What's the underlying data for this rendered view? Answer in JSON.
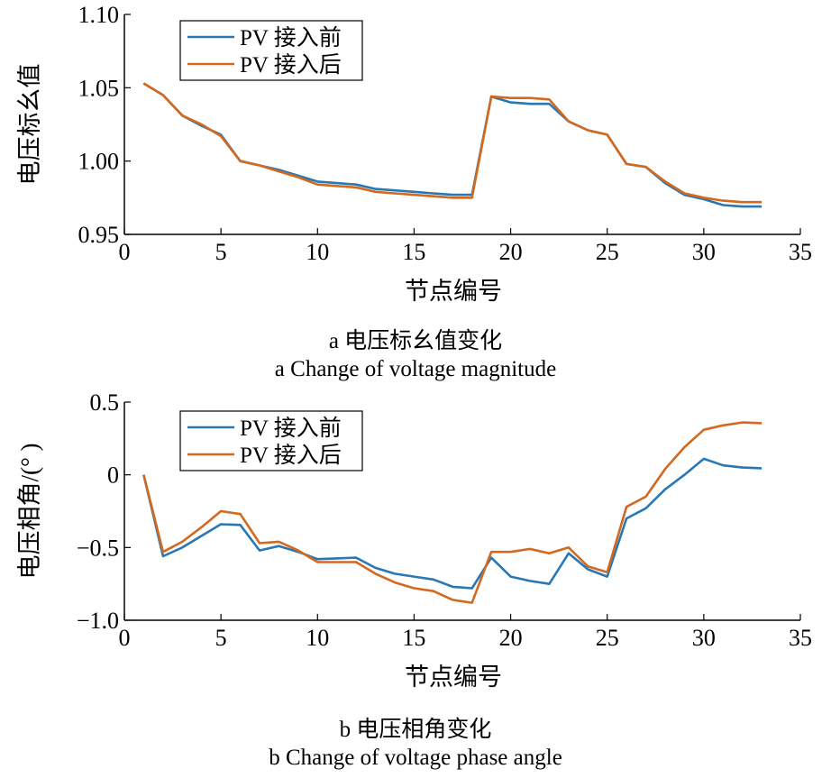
{
  "chart_data": [
    {
      "type": "line",
      "caption_cn": "a  电压标幺值变化",
      "caption_en": "a  Change of voltage magnitude",
      "xlabel": "节点编号",
      "ylabel": "电压标幺值",
      "xlim": [
        0,
        35
      ],
      "ylim": [
        0.95,
        1.1
      ],
      "xticks": [
        0,
        5,
        10,
        15,
        20,
        25,
        30,
        35
      ],
      "xtick_labels": [
        "0",
        "5",
        "10",
        "15",
        "20",
        "25",
        "30",
        "35"
      ],
      "yticks": [
        0.95,
        1.0,
        1.05,
        1.1
      ],
      "ytick_labels": [
        "0.95",
        "1.00",
        "1.05",
        "1.10"
      ],
      "grid": false,
      "legend_position": "top-left",
      "x": [
        1,
        2,
        3,
        4,
        5,
        6,
        7,
        8,
        9,
        10,
        11,
        12,
        13,
        14,
        15,
        16,
        17,
        18,
        19,
        20,
        21,
        22,
        23,
        24,
        25,
        26,
        27,
        28,
        29,
        30,
        31,
        32,
        33
      ],
      "series": [
        {
          "name": "PV 接入前",
          "color": "#2878b5",
          "values": [
            1.053,
            1.045,
            1.031,
            1.024,
            1.018,
            1.0,
            0.997,
            0.994,
            0.99,
            0.986,
            0.985,
            0.984,
            0.981,
            0.98,
            0.979,
            0.978,
            0.977,
            0.977,
            1.044,
            1.04,
            1.039,
            1.039,
            1.027,
            1.021,
            1.018,
            0.998,
            0.996,
            0.985,
            0.977,
            0.974,
            0.97,
            0.969,
            0.969
          ]
        },
        {
          "name": "PV 接入后",
          "color": "#d2691e",
          "values": [
            1.053,
            1.045,
            1.031,
            1.025,
            1.017,
            1.0,
            0.997,
            0.993,
            0.989,
            0.984,
            0.983,
            0.982,
            0.979,
            0.978,
            0.977,
            0.976,
            0.975,
            0.975,
            1.044,
            1.043,
            1.043,
            1.042,
            1.027,
            1.021,
            1.018,
            0.998,
            0.996,
            0.986,
            0.978,
            0.975,
            0.973,
            0.972,
            0.972
          ]
        }
      ]
    },
    {
      "type": "line",
      "caption_cn": "b  电压相角变化",
      "caption_en": "b  Change of voltage phase angle",
      "xlabel": "节点编号",
      "ylabel": "电压相角/(°  )",
      "xlim": [
        0,
        35
      ],
      "ylim": [
        -1.0,
        0.5
      ],
      "xticks": [
        0,
        5,
        10,
        15,
        20,
        25,
        30,
        35
      ],
      "xtick_labels": [
        "0",
        "5",
        "10",
        "15",
        "20",
        "25",
        "30",
        "35"
      ],
      "yticks": [
        -1.0,
        -0.5,
        0,
        0.5
      ],
      "ytick_labels": [
        "−1.0",
        "−0.5",
        "0",
        "0.5"
      ],
      "grid": false,
      "legend_position": "top-left",
      "x": [
        1,
        2,
        3,
        4,
        5,
        6,
        7,
        8,
        9,
        10,
        11,
        12,
        13,
        14,
        15,
        16,
        17,
        18,
        19,
        20,
        21,
        22,
        23,
        24,
        25,
        26,
        27,
        28,
        29,
        30,
        31,
        32,
        33
      ],
      "series": [
        {
          "name": "PV 接入前",
          "color": "#2878b5",
          "values": [
            0.0,
            -0.56,
            -0.5,
            -0.42,
            -0.34,
            -0.345,
            -0.52,
            -0.49,
            -0.53,
            -0.58,
            -0.575,
            -0.57,
            -0.64,
            -0.68,
            -0.7,
            -0.72,
            -0.77,
            -0.78,
            -0.57,
            -0.7,
            -0.73,
            -0.75,
            -0.54,
            -0.65,
            -0.7,
            -0.3,
            -0.23,
            -0.1,
            0.0,
            0.11,
            0.065,
            0.05,
            0.045
          ]
        },
        {
          "name": "PV 接入后",
          "color": "#d2691e",
          "values": [
            0.0,
            -0.53,
            -0.46,
            -0.36,
            -0.25,
            -0.27,
            -0.47,
            -0.46,
            -0.52,
            -0.6,
            -0.6,
            -0.6,
            -0.68,
            -0.74,
            -0.78,
            -0.8,
            -0.86,
            -0.88,
            -0.53,
            -0.53,
            -0.51,
            -0.54,
            -0.5,
            -0.63,
            -0.67,
            -0.22,
            -0.15,
            0.04,
            0.19,
            0.31,
            0.34,
            0.36,
            0.355
          ]
        }
      ]
    }
  ]
}
